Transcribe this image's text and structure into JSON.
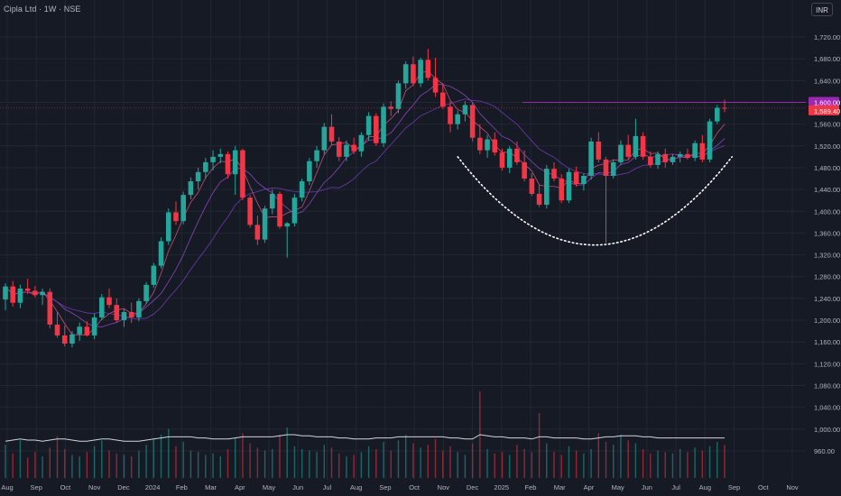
{
  "header": {
    "title": "Cipla Ltd · 1W · NSE",
    "currency": "INR"
  },
  "colors": {
    "background": "#161a25",
    "grid": "#232733",
    "up": "#26a69a",
    "down": "#f23645",
    "ma_fast": "#e05a8c",
    "ma_mid": "#9c4fd3",
    "ma_slow": "#7d3fc2",
    "resistance": "#9c27b0",
    "last_price": "#f23645",
    "curve": "#ffffff",
    "volume_ma": "#d1d4dc",
    "axis_text": "#b2b5be"
  },
  "chart_data": {
    "type": "candlestick",
    "title": "Cipla Ltd · 1W · NSE",
    "symbol": "Cipla Ltd",
    "interval": "1W",
    "exchange": "NSE",
    "currency": "INR",
    "x_tick_labels": [
      "Aug",
      "Sep",
      "Oct",
      "Nov",
      "Dec",
      "2024",
      "Feb",
      "Mar",
      "Apr",
      "May",
      "Jun",
      "Jul",
      "Aug",
      "Sep",
      "Oct",
      "Nov",
      "Dec",
      "2025",
      "Feb",
      "Mar",
      "Apr",
      "May",
      "Jun",
      "Jul",
      "Aug",
      "Sep",
      "Oct",
      "Nov"
    ],
    "y_tick_labels": [
      "1,720.00",
      "1,680.00",
      "1,640.00",
      "1,600.00",
      "1,560.00",
      "1,520.00",
      "1,480.00",
      "1,440.00",
      "1,400.00",
      "1,360.00",
      "1,320.00",
      "1,280.00",
      "1,240.00",
      "1,200.00",
      "1,160.00",
      "1,120.00",
      "1,080.00",
      "1,040.00",
      "1,000.00",
      "960.00"
    ],
    "ylim": [
      950,
      1745
    ],
    "grid": true,
    "resistance_level": {
      "value": 1600.0,
      "label": "1,600.00"
    },
    "last_price": {
      "value": 1589.4,
      "label": "1,589.40"
    },
    "candles": [
      [
        1238,
        1268,
        1218,
        1262
      ],
      [
        1262,
        1272,
        1225,
        1232
      ],
      [
        1232,
        1265,
        1222,
        1258
      ],
      [
        1258,
        1276,
        1248,
        1254
      ],
      [
        1254,
        1263,
        1242,
        1246
      ],
      [
        1246,
        1258,
        1228,
        1252
      ],
      [
        1252,
        1258,
        1185,
        1192
      ],
      [
        1192,
        1215,
        1168,
        1172
      ],
      [
        1172,
        1190,
        1152,
        1157
      ],
      [
        1157,
        1180,
        1150,
        1174
      ],
      [
        1174,
        1196,
        1162,
        1188
      ],
      [
        1188,
        1198,
        1170,
        1172
      ],
      [
        1172,
        1212,
        1165,
        1205
      ],
      [
        1205,
        1248,
        1200,
        1242
      ],
      [
        1242,
        1258,
        1222,
        1228
      ],
      [
        1228,
        1240,
        1195,
        1200
      ],
      [
        1200,
        1220,
        1188,
        1215
      ],
      [
        1215,
        1232,
        1195,
        1205
      ],
      [
        1205,
        1240,
        1198,
        1235
      ],
      [
        1235,
        1270,
        1230,
        1265
      ],
      [
        1265,
        1305,
        1260,
        1300
      ],
      [
        1300,
        1352,
        1295,
        1345
      ],
      [
        1345,
        1405,
        1338,
        1398
      ],
      [
        1398,
        1418,
        1375,
        1382
      ],
      [
        1382,
        1436,
        1376,
        1430
      ],
      [
        1430,
        1462,
        1422,
        1455
      ],
      [
        1455,
        1480,
        1440,
        1472
      ],
      [
        1472,
        1498,
        1460,
        1490
      ],
      [
        1490,
        1512,
        1475,
        1500
      ],
      [
        1500,
        1515,
        1488,
        1505
      ],
      [
        1505,
        1510,
        1460,
        1468
      ],
      [
        1468,
        1520,
        1430,
        1512
      ],
      [
        1512,
        1515,
        1420,
        1425
      ],
      [
        1425,
        1430,
        1370,
        1375
      ],
      [
        1375,
        1392,
        1338,
        1348
      ],
      [
        1348,
        1410,
        1342,
        1405
      ],
      [
        1405,
        1440,
        1395,
        1432
      ],
      [
        1432,
        1436,
        1368,
        1372
      ],
      [
        1372,
        1380,
        1315,
        1378
      ],
      [
        1378,
        1432,
        1372,
        1425
      ],
      [
        1425,
        1460,
        1418,
        1455
      ],
      [
        1455,
        1498,
        1448,
        1492
      ],
      [
        1492,
        1520,
        1480,
        1512
      ],
      [
        1512,
        1562,
        1505,
        1555
      ],
      [
        1555,
        1578,
        1522,
        1528
      ],
      [
        1528,
        1536,
        1492,
        1500
      ],
      [
        1500,
        1530,
        1492,
        1522
      ],
      [
        1522,
        1535,
        1505,
        1510
      ],
      [
        1510,
        1545,
        1500,
        1540
      ],
      [
        1540,
        1582,
        1530,
        1575
      ],
      [
        1575,
        1580,
        1520,
        1525
      ],
      [
        1525,
        1598,
        1518,
        1592
      ],
      [
        1592,
        1602,
        1575,
        1588
      ],
      [
        1588,
        1640,
        1580,
        1635
      ],
      [
        1635,
        1675,
        1625,
        1670
      ],
      [
        1670,
        1684,
        1630,
        1635
      ],
      [
        1635,
        1682,
        1628,
        1678
      ],
      [
        1678,
        1698,
        1640,
        1645
      ],
      [
        1645,
        1682,
        1610,
        1618
      ],
      [
        1618,
        1635,
        1588,
        1592
      ],
      [
        1592,
        1602,
        1545,
        1560
      ],
      [
        1560,
        1585,
        1550,
        1578
      ],
      [
        1578,
        1602,
        1565,
        1595
      ],
      [
        1595,
        1600,
        1528,
        1535
      ],
      [
        1535,
        1560,
        1505,
        1512
      ],
      [
        1512,
        1540,
        1498,
        1532
      ],
      [
        1532,
        1545,
        1502,
        1508
      ],
      [
        1508,
        1515,
        1475,
        1480
      ],
      [
        1480,
        1520,
        1470,
        1515
      ],
      [
        1515,
        1528,
        1485,
        1490
      ],
      [
        1490,
        1512,
        1455,
        1460
      ],
      [
        1460,
        1470,
        1428,
        1432
      ],
      [
        1432,
        1448,
        1408,
        1412
      ],
      [
        1412,
        1485,
        1405,
        1478
      ],
      [
        1478,
        1490,
        1455,
        1460
      ],
      [
        1460,
        1468,
        1415,
        1420
      ],
      [
        1420,
        1478,
        1415,
        1472
      ],
      [
        1472,
        1482,
        1445,
        1450
      ],
      [
        1450,
        1470,
        1438,
        1465
      ],
      [
        1465,
        1535,
        1458,
        1528
      ],
      [
        1528,
        1545,
        1490,
        1495
      ],
      [
        1495,
        1500,
        1342,
        1465
      ],
      [
        1465,
        1495,
        1460,
        1490
      ],
      [
        1490,
        1530,
        1485,
        1522
      ],
      [
        1522,
        1540,
        1495,
        1500
      ],
      [
        1500,
        1570,
        1495,
        1538
      ],
      [
        1538,
        1545,
        1495,
        1500
      ],
      [
        1500,
        1510,
        1480,
        1485
      ],
      [
        1485,
        1510,
        1478,
        1505
      ],
      [
        1505,
        1515,
        1480,
        1490
      ],
      [
        1490,
        1505,
        1485,
        1500
      ],
      [
        1500,
        1510,
        1490,
        1505
      ],
      [
        1505,
        1515,
        1495,
        1498
      ],
      [
        1498,
        1530,
        1492,
        1525
      ],
      [
        1525,
        1540,
        1490,
        1495
      ],
      [
        1495,
        1570,
        1490,
        1565
      ],
      [
        1565,
        1595,
        1560,
        1590
      ],
      [
        1590,
        1605,
        1582,
        1589.4
      ]
    ],
    "volumes": [
      46,
      34,
      52,
      28,
      36,
      30,
      42,
      58,
      40,
      32,
      30,
      36,
      44,
      52,
      38,
      34,
      32,
      30,
      38,
      46,
      54,
      60,
      68,
      44,
      50,
      38,
      36,
      32,
      34,
      30,
      40,
      56,
      62,
      48,
      42,
      38,
      40,
      60,
      70,
      44,
      40,
      38,
      36,
      46,
      42,
      34,
      30,
      32,
      36,
      44,
      40,
      50,
      38,
      52,
      60,
      48,
      42,
      46,
      54,
      38,
      44,
      36,
      32,
      48,
      120,
      40,
      34,
      36,
      32,
      46,
      40,
      36,
      90,
      48,
      36,
      32,
      44,
      38,
      34,
      40,
      62,
      50,
      46,
      60,
      52,
      48,
      40,
      34,
      38,
      36,
      34,
      40,
      36,
      42,
      38,
      44,
      50,
      46
    ],
    "volume_ma": [
      34,
      35,
      36,
      35,
      35,
      34,
      35,
      36,
      36,
      35,
      34,
      34,
      35,
      36,
      36,
      35,
      34,
      34,
      34,
      35,
      36,
      37,
      38,
      38,
      38,
      38,
      37,
      37,
      36,
      36,
      36,
      37,
      38,
      38,
      38,
      38,
      38,
      39,
      40,
      40,
      39,
      39,
      38,
      38,
      38,
      37,
      37,
      36,
      36,
      36,
      37,
      37,
      37,
      38,
      38,
      38,
      38,
      38,
      38,
      38,
      37,
      37,
      36,
      36,
      40,
      39,
      38,
      38,
      37,
      37,
      37,
      36,
      38,
      38,
      37,
      37,
      37,
      37,
      36,
      36,
      37,
      38,
      38,
      39,
      39,
      39,
      38,
      38,
      37,
      37,
      37,
      37,
      37,
      37,
      37,
      37,
      37,
      37
    ],
    "curve_overlay": {
      "x_range": [
        61,
        98
      ],
      "y_top": 1500,
      "y_bottom": 1338
    },
    "moving_averages": [
      "fast",
      "medium",
      "slow"
    ]
  }
}
